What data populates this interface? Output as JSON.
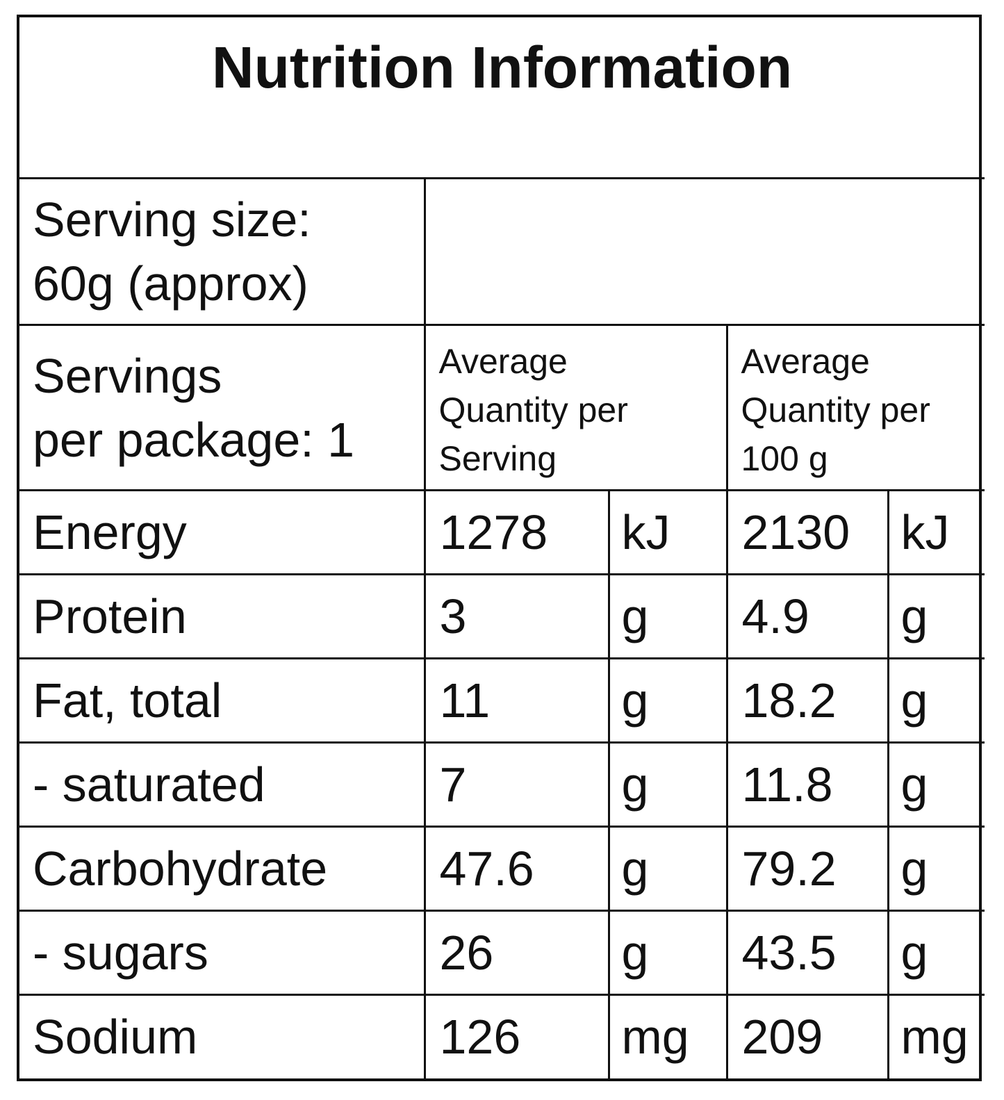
{
  "panel": {
    "title": "Nutrition Information",
    "serving_size_line1": "Serving size:",
    "serving_size_line2": "60g (approx)",
    "servings_per_package_line1": "Servings",
    "servings_per_package_line2": "per package: 1",
    "per_serving_header": [
      "Average",
      "Quantity per",
      "Serving"
    ],
    "per_100g_header": [
      "Average",
      "Quantity per",
      "100 g"
    ]
  },
  "nutrients": [
    {
      "name": "Energy",
      "per_serving": "1278",
      "per_serving_unit": "kJ",
      "per_100g": "2130",
      "per_100g_unit": "kJ"
    },
    {
      "name": "Protein",
      "per_serving": "3",
      "per_serving_unit": "g",
      "per_100g": "4.9",
      "per_100g_unit": "g"
    },
    {
      "name": "Fat, total",
      "per_serving": "11",
      "per_serving_unit": "g",
      "per_100g": "18.2",
      "per_100g_unit": "g"
    },
    {
      "name": "- saturated",
      "per_serving": "7",
      "per_serving_unit": "g",
      "per_100g": "11.8",
      "per_100g_unit": "g"
    },
    {
      "name": "Carbohydrate",
      "per_serving": "47.6",
      "per_serving_unit": "g",
      "per_100g": "79.2",
      "per_100g_unit": "g"
    },
    {
      "name": "- sugars",
      "per_serving": "26",
      "per_serving_unit": "g",
      "per_100g": "43.5",
      "per_100g_unit": "g"
    },
    {
      "name": "Sodium",
      "per_serving": "126",
      "per_serving_unit": "mg",
      "per_100g": "209",
      "per_100g_unit": "mg"
    }
  ]
}
